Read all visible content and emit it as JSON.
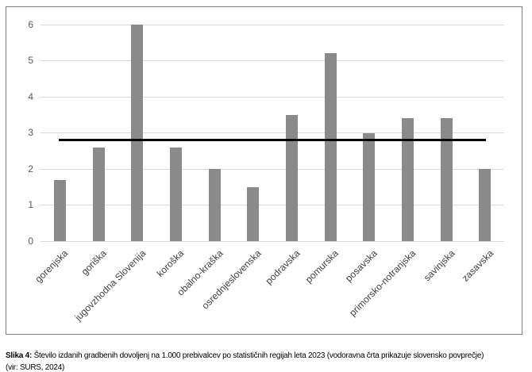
{
  "chart_data": {
    "type": "bar",
    "categories": [
      "gorenjska",
      "goriška",
      "jugovzhodna Slovenija",
      "koroška",
      "obalno-kraška",
      "osrednjeslovenska",
      "podravska",
      "pomurska",
      "posavska",
      "primorsko-notranjska",
      "savinjska",
      "zasavska"
    ],
    "values": [
      1.7,
      2.6,
      6.0,
      2.6,
      2.0,
      1.5,
      3.5,
      5.2,
      3.0,
      3.4,
      3.4,
      2.0
    ],
    "title": "",
    "xlabel": "",
    "ylabel": "",
    "ylim": [
      0,
      6
    ],
    "yticks": [
      0,
      1,
      2,
      3,
      4,
      5,
      6
    ],
    "grid": true,
    "legend": false,
    "reference_line": {
      "value": 2.8,
      "meaning": "slovensko povprečje"
    }
  },
  "colors": {
    "bar": "#8a8a8a",
    "gridline": "#d9d9d9",
    "frame_border": "#7f7f7f",
    "reference_line": "#000000",
    "ytick_text": "#595959",
    "xlabel_text": "#3f3f3f"
  },
  "caption": {
    "prefix": "Slika 4:",
    "text": "Število izdanih gradbenih dovoljenj na 1.000 prebivalcev po statističnih regijah leta 2023 (vodoravna črta prikazuje slovensko povprečje)",
    "source": "(vir: SURS, 2024)"
  }
}
